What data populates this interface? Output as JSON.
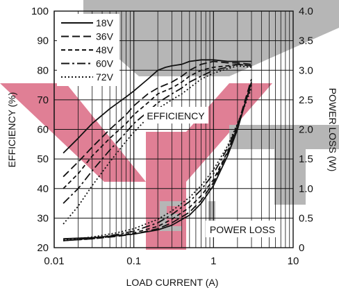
{
  "chart_data": {
    "type": "line",
    "xlabel": "LOAD CURRENT (A)",
    "ylabel": "EFFICIENCY (%)",
    "y2label": "POWER LOSS (W)",
    "xscale": "log",
    "xlim": [
      0.01,
      10
    ],
    "ylim": [
      20,
      100
    ],
    "y2lim": [
      0,
      4
    ],
    "x_ticks": [
      "0.01",
      "0.1",
      "1",
      "10"
    ],
    "y_ticks": [
      "20",
      "30",
      "40",
      "50",
      "60",
      "70",
      "80",
      "90",
      "100"
    ],
    "y2_ticks": [
      "0",
      "0.5",
      "1.0",
      "1.5",
      "2.0",
      "2.5",
      "3.0",
      "3.5",
      "4.0"
    ],
    "grid": true,
    "legend_position": "top-left",
    "annotations": {
      "efficiency": "EFFICIENCY",
      "power_loss": "POWER LOSS"
    },
    "watermark_colors": {
      "red": "#e07f95",
      "gray": "#b6b6b6"
    },
    "series": [
      {
        "name": "18V",
        "dash": "solid",
        "color": "#111111",
        "efficiency": [
          [
            0.013,
            52
          ],
          [
            0.02,
            57
          ],
          [
            0.03,
            62
          ],
          [
            0.05,
            67
          ],
          [
            0.08,
            71
          ],
          [
            0.1,
            73
          ],
          [
            0.15,
            77
          ],
          [
            0.2,
            80
          ],
          [
            0.25,
            81
          ],
          [
            0.3,
            81.5
          ],
          [
            0.4,
            82
          ],
          [
            0.5,
            83
          ],
          [
            0.7,
            83.5
          ],
          [
            1.0,
            83.5
          ],
          [
            1.5,
            83
          ],
          [
            2.0,
            83
          ],
          [
            3.0,
            83
          ]
        ],
        "power_loss": [
          [
            0.013,
            0.15
          ],
          [
            0.03,
            0.17
          ],
          [
            0.06,
            0.2
          ],
          [
            0.1,
            0.23
          ],
          [
            0.2,
            0.3
          ],
          [
            0.3,
            0.38
          ],
          [
            0.5,
            0.55
          ],
          [
            0.7,
            0.75
          ],
          [
            1.0,
            1.05
          ],
          [
            1.5,
            1.55
          ],
          [
            2.0,
            2.0
          ],
          [
            2.5,
            2.45
          ],
          [
            3.0,
            2.8
          ]
        ]
      },
      {
        "name": "36V",
        "dash": "long-dash",
        "color": "#111111",
        "efficiency": [
          [
            0.013,
            44
          ],
          [
            0.02,
            49
          ],
          [
            0.03,
            54
          ],
          [
            0.05,
            60
          ],
          [
            0.08,
            65
          ],
          [
            0.1,
            68
          ],
          [
            0.15,
            72
          ],
          [
            0.2,
            74
          ],
          [
            0.3,
            76
          ],
          [
            0.4,
            78
          ],
          [
            0.5,
            80
          ],
          [
            0.7,
            82
          ],
          [
            1.0,
            83
          ],
          [
            1.5,
            82.5
          ],
          [
            2.0,
            82.5
          ],
          [
            3.0,
            82
          ]
        ],
        "power_loss": [
          [
            0.013,
            0.12
          ],
          [
            0.03,
            0.15
          ],
          [
            0.06,
            0.19
          ],
          [
            0.1,
            0.23
          ],
          [
            0.2,
            0.32
          ],
          [
            0.3,
            0.42
          ],
          [
            0.5,
            0.6
          ],
          [
            0.7,
            0.8
          ],
          [
            1.0,
            1.1
          ],
          [
            1.5,
            1.6
          ],
          [
            2.0,
            2.05
          ],
          [
            2.5,
            2.5
          ],
          [
            3.0,
            2.85
          ]
        ]
      },
      {
        "name": "48V",
        "dash": "short-dash",
        "color": "#111111",
        "efficiency": [
          [
            0.013,
            40
          ],
          [
            0.02,
            45
          ],
          [
            0.03,
            51
          ],
          [
            0.05,
            57
          ],
          [
            0.08,
            62
          ],
          [
            0.1,
            65
          ],
          [
            0.15,
            69
          ],
          [
            0.2,
            72
          ],
          [
            0.3,
            74
          ],
          [
            0.4,
            76
          ],
          [
            0.5,
            78
          ],
          [
            0.7,
            80
          ],
          [
            1.0,
            81
          ],
          [
            1.5,
            81.5
          ],
          [
            2.0,
            82
          ],
          [
            3.0,
            81.5
          ]
        ],
        "power_loss": [
          [
            0.013,
            0.12
          ],
          [
            0.03,
            0.15
          ],
          [
            0.06,
            0.2
          ],
          [
            0.1,
            0.25
          ],
          [
            0.2,
            0.36
          ],
          [
            0.3,
            0.48
          ],
          [
            0.5,
            0.68
          ],
          [
            0.7,
            0.88
          ],
          [
            1.0,
            1.15
          ],
          [
            1.5,
            1.62
          ],
          [
            2.0,
            2.05
          ],
          [
            2.5,
            2.45
          ],
          [
            3.0,
            2.78
          ]
        ]
      },
      {
        "name": "60V",
        "dash": "dash-dot",
        "color": "#111111",
        "efficiency": [
          [
            0.013,
            35
          ],
          [
            0.02,
            40
          ],
          [
            0.03,
            46
          ],
          [
            0.05,
            53
          ],
          [
            0.08,
            59
          ],
          [
            0.1,
            62
          ],
          [
            0.15,
            66
          ],
          [
            0.2,
            69
          ],
          [
            0.3,
            72
          ],
          [
            0.4,
            74
          ],
          [
            0.5,
            76
          ],
          [
            0.7,
            78
          ],
          [
            1.0,
            80
          ],
          [
            1.5,
            81
          ],
          [
            2.0,
            82
          ],
          [
            3.0,
            81.5
          ]
        ],
        "power_loss": [
          [
            0.013,
            0.12
          ],
          [
            0.03,
            0.16
          ],
          [
            0.06,
            0.22
          ],
          [
            0.1,
            0.28
          ],
          [
            0.2,
            0.42
          ],
          [
            0.3,
            0.56
          ],
          [
            0.5,
            0.78
          ],
          [
            0.7,
            0.98
          ],
          [
            1.0,
            1.25
          ],
          [
            1.5,
            1.68
          ],
          [
            2.0,
            2.08
          ],
          [
            2.5,
            2.45
          ],
          [
            3.0,
            2.75
          ]
        ]
      },
      {
        "name": "72V",
        "dash": "dotted",
        "color": "#111111",
        "efficiency": [
          [
            0.013,
            28
          ],
          [
            0.02,
            34
          ],
          [
            0.03,
            41
          ],
          [
            0.05,
            49
          ],
          [
            0.08,
            56
          ],
          [
            0.1,
            59
          ],
          [
            0.15,
            64
          ],
          [
            0.2,
            67
          ],
          [
            0.3,
            70
          ],
          [
            0.4,
            72
          ],
          [
            0.5,
            74
          ],
          [
            0.7,
            77
          ],
          [
            1.0,
            79
          ],
          [
            1.5,
            80.5
          ],
          [
            2.0,
            81.5
          ],
          [
            3.0,
            81
          ]
        ],
        "power_loss": [
          [
            0.013,
            0.13
          ],
          [
            0.03,
            0.18
          ],
          [
            0.06,
            0.25
          ],
          [
            0.1,
            0.32
          ],
          [
            0.2,
            0.48
          ],
          [
            0.3,
            0.62
          ],
          [
            0.5,
            0.85
          ],
          [
            0.7,
            1.05
          ],
          [
            1.0,
            1.32
          ],
          [
            1.5,
            1.72
          ],
          [
            2.0,
            2.1
          ],
          [
            2.5,
            2.42
          ],
          [
            3.0,
            2.7
          ]
        ]
      }
    ]
  }
}
